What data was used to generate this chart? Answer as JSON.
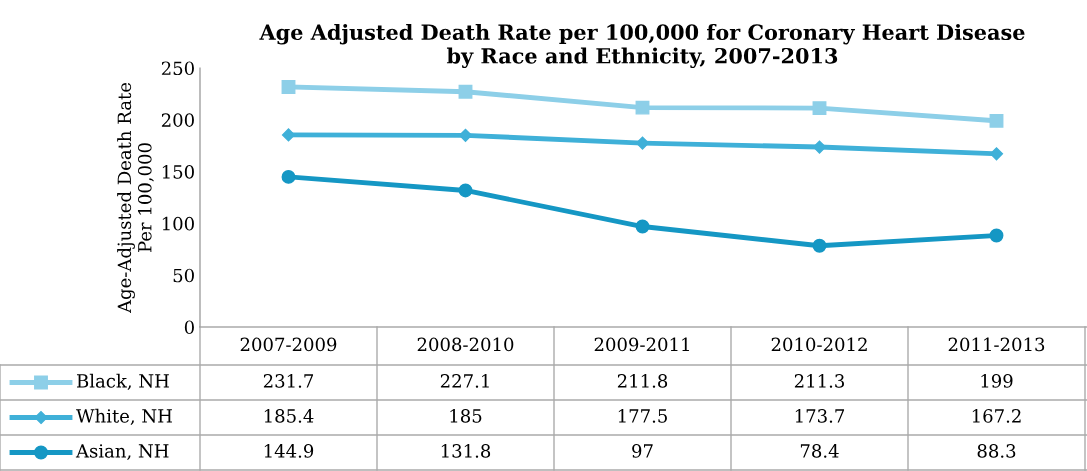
{
  "chart_data": {
    "type": "line",
    "title": "Age Adjusted Death Rate per 100,000 for Coronary Heart Disease\nby Race and Ethnicity, 2007-2013",
    "ylabel": "Age-Adjusted Death Rate\nPer 100,000",
    "categories": [
      "2007-2009",
      "2008-2010",
      "2009-2011",
      "2010-2012",
      "2011-2013"
    ],
    "series": [
      {
        "name": "Black, NH",
        "color": "#8dcfe8",
        "marker": "square",
        "values": [
          231.7,
          227.1,
          211.8,
          211.3,
          199
        ]
      },
      {
        "name": "White, NH",
        "color": "#3fb0d8",
        "marker": "diamond",
        "values": [
          185.4,
          185,
          177.5,
          173.7,
          167.2
        ]
      },
      {
        "name": "Asian, NH",
        "color": "#1597c4",
        "marker": "circle",
        "values": [
          144.9,
          131.8,
          97,
          78.4,
          88.3
        ]
      }
    ],
    "ylim": [
      0,
      250
    ],
    "yticks": [
      0,
      50,
      100,
      150,
      200,
      250
    ],
    "grid": false,
    "data_labels": true,
    "legend": "bottom",
    "line_style": "solid"
  }
}
